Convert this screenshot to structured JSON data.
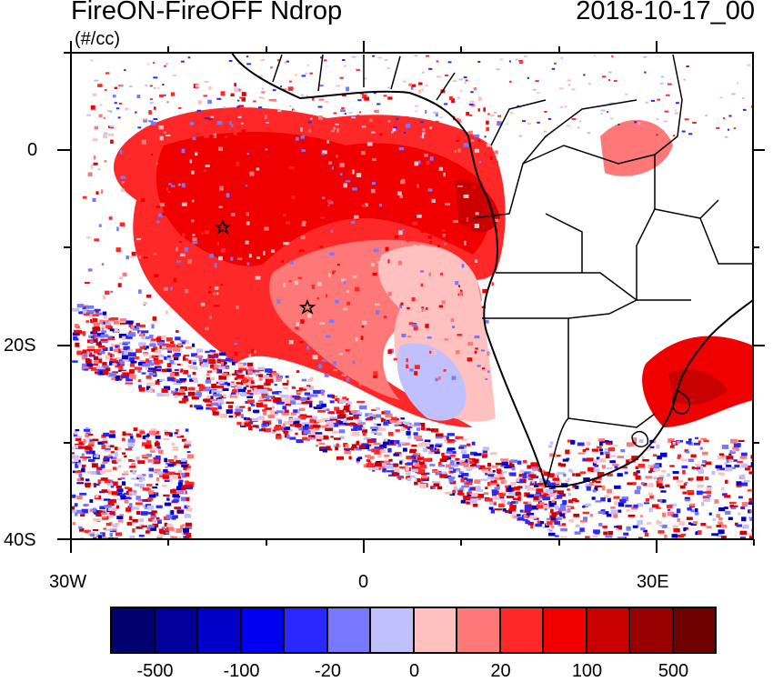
{
  "title_left": "FireON-FireOFF Ndrop",
  "title_right": "2018-10-17_00",
  "units": "(#/cc)",
  "lat_labels": [
    "0",
    "20S",
    "40S"
  ],
  "lon_labels": [
    "30W",
    "0",
    "30E"
  ],
  "colorbar": {
    "colors": [
      "#000070",
      "#00009a",
      "#0000c8",
      "#0000f0",
      "#2828ff",
      "#7878ff",
      "#c0c0ff",
      "#ffc0c0",
      "#ff7878",
      "#ff2828",
      "#f00000",
      "#c80000",
      "#990000",
      "#700000"
    ],
    "labels": [
      "-500",
      "-100",
      "-20",
      "0",
      "20",
      "100",
      "500"
    ]
  },
  "markers": [
    "star-marker-1",
    "star-marker-2"
  ]
}
